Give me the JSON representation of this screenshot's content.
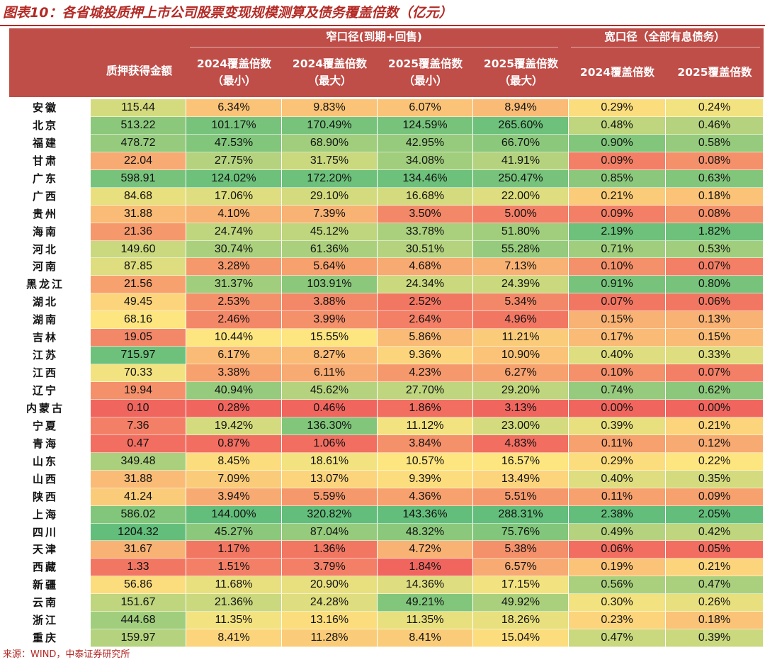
{
  "title": "图表10：各省城投质押上市公司股票变现规模测算及债务覆盖倍数（亿元）",
  "header": {
    "group_narrow": "窄口径(到期+回售)",
    "group_wide": "宽口径（全部有息债务）",
    "columns": [
      {
        "line1": "质押获得金额",
        "line2": ""
      },
      {
        "line1": "2024覆盖倍数",
        "line2": "（最小）"
      },
      {
        "line1": "2024覆盖倍数",
        "line2": "（最大）"
      },
      {
        "line1": "2025覆盖倍数",
        "line2": "（最小）"
      },
      {
        "line1": "2025覆盖倍数",
        "line2": "（最大）"
      },
      {
        "line1": "2024覆盖倍数",
        "line2": ""
      },
      {
        "line1": "2025覆盖倍数",
        "line2": ""
      }
    ]
  },
  "rows": [
    {
      "province": "安徽",
      "cells": [
        "115.44",
        "6.34%",
        "9.83%",
        "6.07%",
        "8.94%",
        "0.29%",
        "0.24%"
      ]
    },
    {
      "province": "北京",
      "cells": [
        "513.22",
        "101.17%",
        "170.49%",
        "124.59%",
        "265.60%",
        "0.48%",
        "0.46%"
      ]
    },
    {
      "province": "福建",
      "cells": [
        "478.72",
        "47.53%",
        "68.90%",
        "42.95%",
        "66.70%",
        "0.90%",
        "0.58%"
      ]
    },
    {
      "province": "甘肃",
      "cells": [
        "22.04",
        "27.75%",
        "31.75%",
        "34.08%",
        "41.91%",
        "0.09%",
        "0.08%"
      ]
    },
    {
      "province": "广东",
      "cells": [
        "598.91",
        "124.02%",
        "172.20%",
        "134.46%",
        "250.47%",
        "0.85%",
        "0.63%"
      ]
    },
    {
      "province": "广西",
      "cells": [
        "84.68",
        "17.06%",
        "29.10%",
        "16.68%",
        "22.00%",
        "0.21%",
        "0.18%"
      ]
    },
    {
      "province": "贵州",
      "cells": [
        "31.88",
        "4.10%",
        "7.39%",
        "3.50%",
        "5.00%",
        "0.09%",
        "0.08%"
      ]
    },
    {
      "province": "海南",
      "cells": [
        "21.36",
        "24.74%",
        "45.12%",
        "33.78%",
        "51.80%",
        "2.19%",
        "1.82%"
      ]
    },
    {
      "province": "河北",
      "cells": [
        "149.60",
        "30.74%",
        "61.36%",
        "30.51%",
        "55.28%",
        "0.71%",
        "0.53%"
      ]
    },
    {
      "province": "河南",
      "cells": [
        "87.85",
        "3.28%",
        "5.64%",
        "4.68%",
        "7.13%",
        "0.10%",
        "0.07%"
      ]
    },
    {
      "province": "黑龙江",
      "cells": [
        "21.56",
        "31.37%",
        "103.91%",
        "24.34%",
        "24.39%",
        "0.91%",
        "0.80%"
      ]
    },
    {
      "province": "湖北",
      "cells": [
        "49.45",
        "2.53%",
        "3.88%",
        "2.52%",
        "5.34%",
        "0.07%",
        "0.06%"
      ]
    },
    {
      "province": "湖南",
      "cells": [
        "68.16",
        "2.46%",
        "3.99%",
        "2.64%",
        "4.96%",
        "0.15%",
        "0.13%"
      ]
    },
    {
      "province": "吉林",
      "cells": [
        "19.05",
        "10.44%",
        "15.55%",
        "5.86%",
        "11.21%",
        "0.17%",
        "0.15%"
      ]
    },
    {
      "province": "江苏",
      "cells": [
        "715.97",
        "6.17%",
        "8.27%",
        "9.36%",
        "10.90%",
        "0.40%",
        "0.33%"
      ]
    },
    {
      "province": "江西",
      "cells": [
        "70.33",
        "3.38%",
        "6.11%",
        "4.23%",
        "6.27%",
        "0.10%",
        "0.07%"
      ]
    },
    {
      "province": "辽宁",
      "cells": [
        "19.94",
        "40.94%",
        "45.62%",
        "27.70%",
        "29.20%",
        "0.74%",
        "0.62%"
      ]
    },
    {
      "province": "内蒙古",
      "cells": [
        "0.10",
        "0.28%",
        "0.46%",
        "1.86%",
        "3.13%",
        "0.00%",
        "0.00%"
      ]
    },
    {
      "province": "宁夏",
      "cells": [
        "7.36",
        "19.42%",
        "136.30%",
        "11.12%",
        "23.00%",
        "0.39%",
        "0.21%"
      ]
    },
    {
      "province": "青海",
      "cells": [
        "0.47",
        "0.87%",
        "1.06%",
        "3.84%",
        "4.83%",
        "0.11%",
        "0.12%"
      ]
    },
    {
      "province": "山东",
      "cells": [
        "349.48",
        "8.45%",
        "18.61%",
        "10.57%",
        "16.57%",
        "0.29%",
        "0.22%"
      ]
    },
    {
      "province": "山西",
      "cells": [
        "31.88",
        "7.09%",
        "13.07%",
        "9.39%",
        "13.49%",
        "0.40%",
        "0.35%"
      ]
    },
    {
      "province": "陕西",
      "cells": [
        "41.24",
        "3.94%",
        "5.59%",
        "4.36%",
        "5.51%",
        "0.11%",
        "0.09%"
      ]
    },
    {
      "province": "上海",
      "cells": [
        "586.02",
        "144.00%",
        "320.82%",
        "143.36%",
        "288.31%",
        "2.38%",
        "2.05%"
      ]
    },
    {
      "province": "四川",
      "cells": [
        "1204.32",
        "45.27%",
        "87.04%",
        "48.32%",
        "75.76%",
        "0.49%",
        "0.42%"
      ]
    },
    {
      "province": "天津",
      "cells": [
        "31.67",
        "1.17%",
        "1.36%",
        "4.72%",
        "5.38%",
        "0.06%",
        "0.05%"
      ]
    },
    {
      "province": "西藏",
      "cells": [
        "1.33",
        "1.51%",
        "3.79%",
        "1.84%",
        "6.57%",
        "0.19%",
        "0.21%"
      ]
    },
    {
      "province": "新疆",
      "cells": [
        "56.86",
        "11.68%",
        "20.90%",
        "14.36%",
        "17.15%",
        "0.56%",
        "0.47%"
      ]
    },
    {
      "province": "云南",
      "cells": [
        "151.67",
        "21.36%",
        "24.28%",
        "49.21%",
        "49.92%",
        "0.30%",
        "0.26%"
      ]
    },
    {
      "province": "浙江",
      "cells": [
        "444.68",
        "11.35%",
        "13.16%",
        "11.35%",
        "18.26%",
        "0.23%",
        "0.18%"
      ]
    },
    {
      "province": "重庆",
      "cells": [
        "159.97",
        "8.41%",
        "11.28%",
        "8.41%",
        "15.04%",
        "0.47%",
        "0.39%"
      ]
    }
  ],
  "colors": {
    "header_bg": "#bf4d48",
    "title": "#b42a25",
    "scale_low": "#f0665f",
    "scale_mid": "#fde580",
    "scale_high": "#63be7b"
  },
  "source": "来源：WIND，中泰证券研究所"
}
